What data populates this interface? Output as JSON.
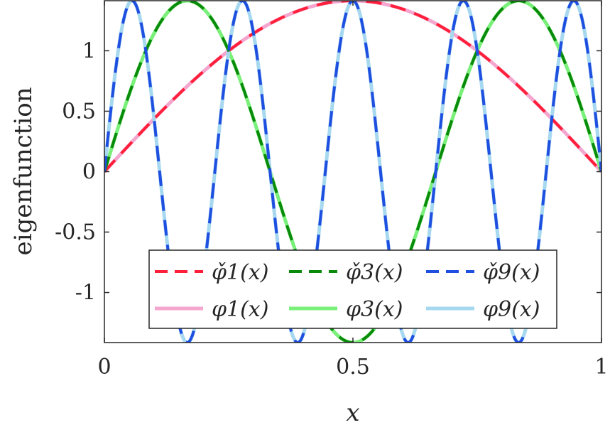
{
  "chart_data": {
    "type": "line",
    "title": "",
    "xlabel": "x",
    "ylabel": "eigenfunction",
    "xlim": [
      0,
      1
    ],
    "ylim": [
      -1.4142,
      1.4142
    ],
    "xticks": [
      0,
      0.5,
      1
    ],
    "xtick_labels": [
      "0",
      "0.5",
      "1"
    ],
    "yticks": [
      -1,
      -0.5,
      0,
      0.5,
      1
    ],
    "ytick_labels": [
      "-1",
      "-0.5",
      "0",
      "0.5",
      "1"
    ],
    "grid": false,
    "legend": {
      "placement": "bottom-center",
      "columns": 3
    },
    "function": "sqrt(2)*sin(n*pi*x)",
    "series": [
      {
        "name": "φ̌1(x)",
        "mode": 1,
        "color": "#ff1f3a",
        "dash": "dashed"
      },
      {
        "name": "φ̌3(x)",
        "mode": 3,
        "color": "#0a8a0a",
        "dash": "dashed"
      },
      {
        "name": "φ̌9(x)",
        "mode": 9,
        "color": "#1f4fe0",
        "dash": "dashed"
      },
      {
        "name": "φ1(x)",
        "mode": 1,
        "color": "#f4a6cf",
        "dash": "solid"
      },
      {
        "name": "φ3(x)",
        "mode": 3,
        "color": "#7af07a",
        "dash": "solid"
      },
      {
        "name": "φ9(x)",
        "mode": 9,
        "color": "#a6d8f0",
        "dash": "solid"
      }
    ]
  }
}
